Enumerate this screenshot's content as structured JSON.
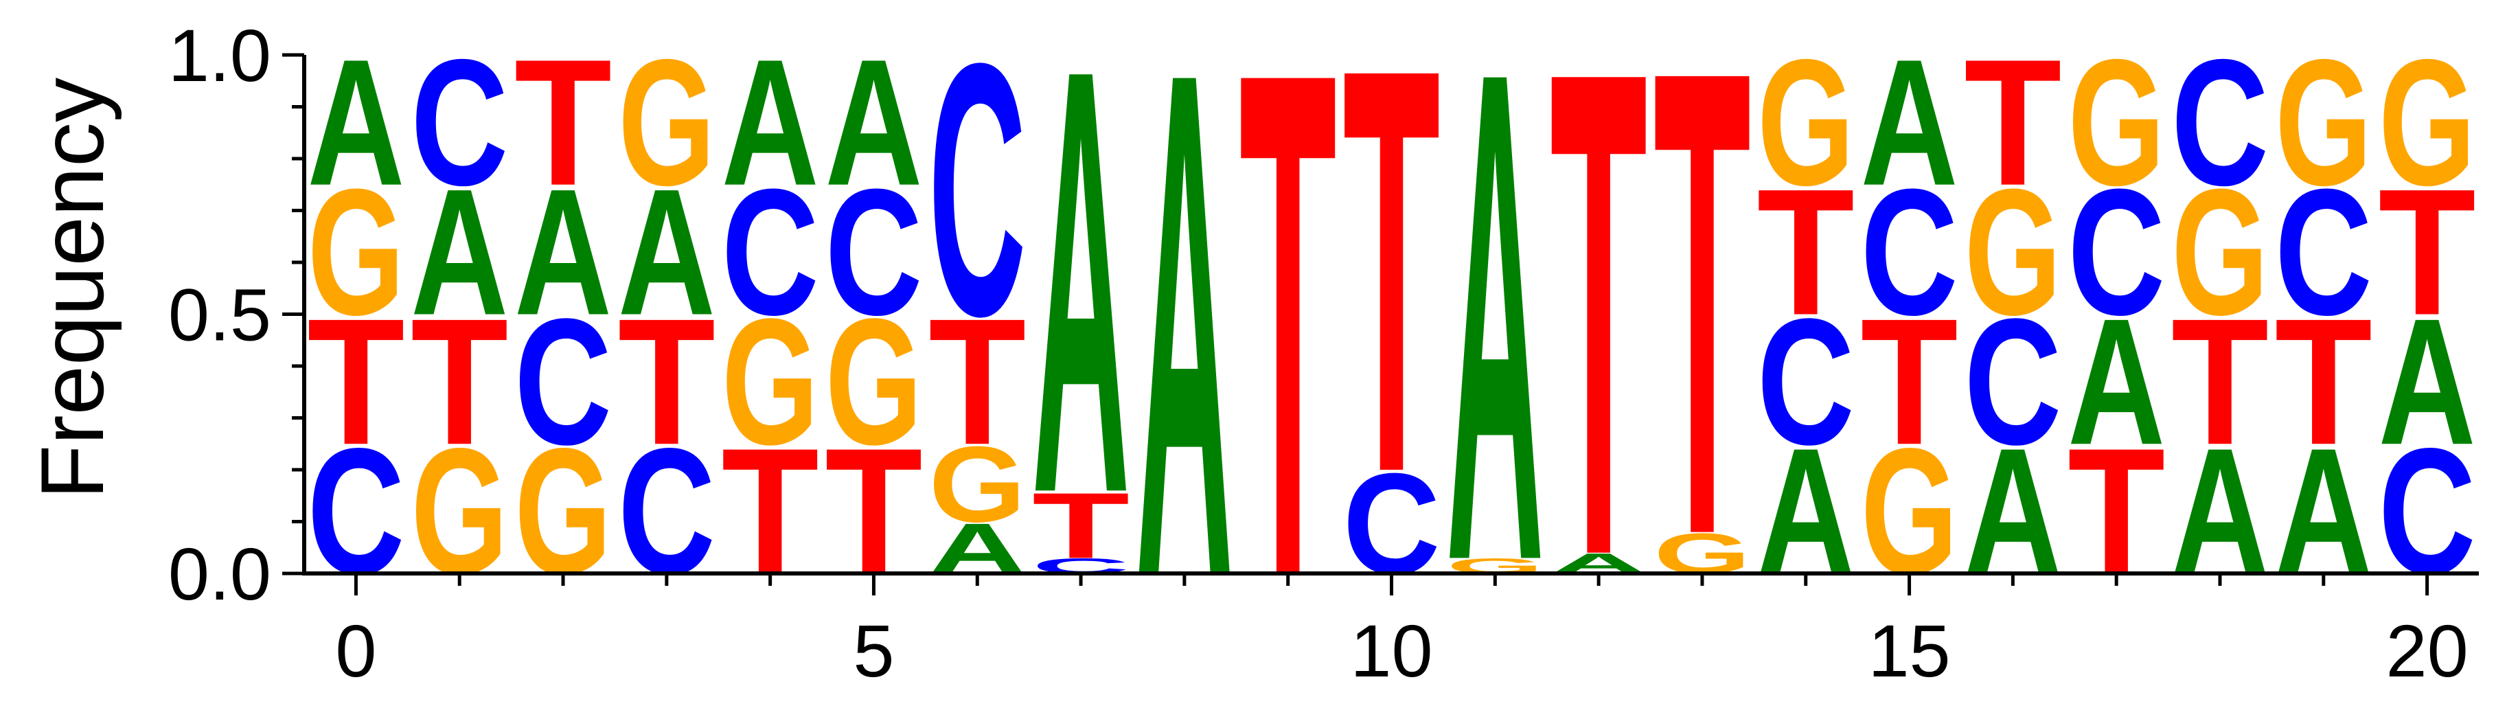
{
  "chart_data": {
    "type": "sequence-logo",
    "ylabel": "Frequency",
    "xlabel": "",
    "title": "",
    "ylim": [
      0,
      1.0
    ],
    "xlim": [
      -0.5,
      20.5
    ],
    "grid": false,
    "y_ticks": [
      "0.0",
      "0.5",
      "1.0"
    ],
    "y_tick_values": [
      0,
      0.5,
      1.0
    ],
    "x_ticks": [
      "0",
      "5",
      "10",
      "15",
      "20"
    ],
    "x_tick_values": [
      0,
      5,
      10,
      15,
      20
    ],
    "colors": {
      "A": "#008000",
      "C": "#0000ff",
      "G": "#ffa500",
      "T": "#ff0000"
    },
    "positions": [
      {
        "x": 0,
        "stack": [
          [
            "C",
            0.25
          ],
          [
            "T",
            0.25
          ],
          [
            "G",
            0.25
          ],
          [
            "A",
            0.25
          ]
        ]
      },
      {
        "x": 1,
        "stack": [
          [
            "G",
            0.25
          ],
          [
            "T",
            0.25
          ],
          [
            "A",
            0.25
          ],
          [
            "C",
            0.25
          ]
        ]
      },
      {
        "x": 2,
        "stack": [
          [
            "G",
            0.25
          ],
          [
            "C",
            0.25
          ],
          [
            "A",
            0.25
          ],
          [
            "T",
            0.25
          ]
        ]
      },
      {
        "x": 3,
        "stack": [
          [
            "C",
            0.25
          ],
          [
            "T",
            0.25
          ],
          [
            "A",
            0.25
          ],
          [
            "G",
            0.25
          ]
        ]
      },
      {
        "x": 4,
        "stack": [
          [
            "T",
            0.25
          ],
          [
            "G",
            0.25
          ],
          [
            "C",
            0.25
          ],
          [
            "A",
            0.25
          ]
        ]
      },
      {
        "x": 5,
        "stack": [
          [
            "T",
            0.25
          ],
          [
            "G",
            0.25
          ],
          [
            "C",
            0.25
          ],
          [
            "A",
            0.25
          ]
        ]
      },
      {
        "x": 6,
        "stack": [
          [
            "A",
            0.1
          ],
          [
            "G",
            0.15
          ],
          [
            "T",
            0.25
          ],
          [
            "C",
            0.5
          ]
        ]
      },
      {
        "x": 7,
        "stack": [
          [
            "C",
            0.03
          ],
          [
            "T",
            0.13
          ],
          [
            "A",
            0.84
          ]
        ]
      },
      {
        "x": 8,
        "stack": [
          [
            "A",
            1.0
          ]
        ]
      },
      {
        "x": 9,
        "stack": [
          [
            "T",
            1.0
          ]
        ]
      },
      {
        "x": 10,
        "stack": [
          [
            "C",
            0.2
          ],
          [
            "T",
            0.8
          ]
        ]
      },
      {
        "x": 11,
        "stack": [
          [
            "G",
            0.03
          ],
          [
            "A",
            0.97
          ]
        ]
      },
      {
        "x": 12,
        "stack": [
          [
            "A",
            0.04
          ],
          [
            "T",
            0.96
          ]
        ]
      },
      {
        "x": 13,
        "stack": [
          [
            "G",
            0.08
          ],
          [
            "T",
            0.92
          ]
        ]
      },
      {
        "x": 14,
        "stack": [
          [
            "A",
            0.25
          ],
          [
            "C",
            0.25
          ],
          [
            "T",
            0.25
          ],
          [
            "G",
            0.25
          ]
        ]
      },
      {
        "x": 15,
        "stack": [
          [
            "G",
            0.25
          ],
          [
            "T",
            0.25
          ],
          [
            "C",
            0.25
          ],
          [
            "A",
            0.25
          ]
        ]
      },
      {
        "x": 16,
        "stack": [
          [
            "A",
            0.25
          ],
          [
            "C",
            0.25
          ],
          [
            "G",
            0.25
          ],
          [
            "T",
            0.25
          ]
        ]
      },
      {
        "x": 17,
        "stack": [
          [
            "T",
            0.25
          ],
          [
            "A",
            0.25
          ],
          [
            "C",
            0.25
          ],
          [
            "G",
            0.25
          ]
        ]
      },
      {
        "x": 18,
        "stack": [
          [
            "A",
            0.25
          ],
          [
            "T",
            0.25
          ],
          [
            "G",
            0.25
          ],
          [
            "C",
            0.25
          ]
        ]
      },
      {
        "x": 19,
        "stack": [
          [
            "A",
            0.25
          ],
          [
            "T",
            0.25
          ],
          [
            "C",
            0.25
          ],
          [
            "G",
            0.25
          ]
        ]
      },
      {
        "x": 20,
        "stack": [
          [
            "C",
            0.25
          ],
          [
            "A",
            0.25
          ],
          [
            "T",
            0.25
          ],
          [
            "G",
            0.25
          ]
        ]
      }
    ]
  }
}
